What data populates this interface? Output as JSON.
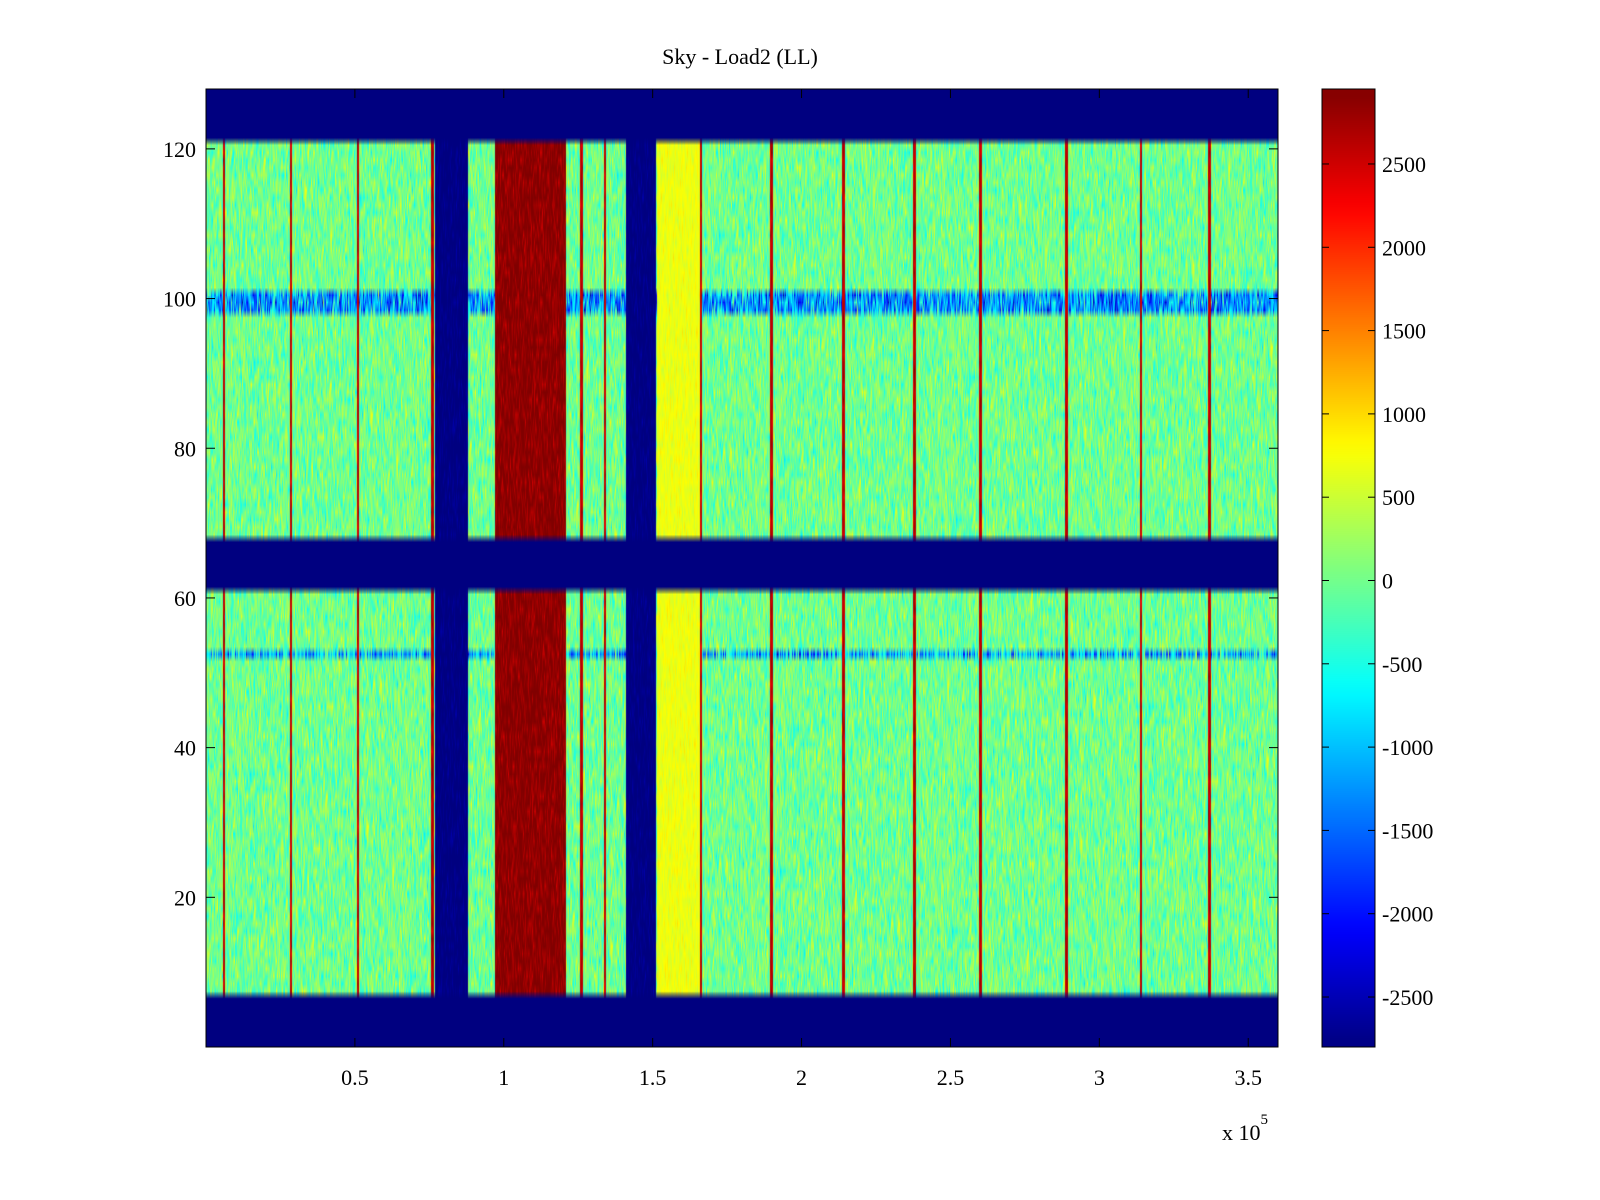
{
  "chart_data": {
    "type": "heatmap",
    "title": "Sky - Load2 (LL)",
    "xlabel": "",
    "ylabel": "",
    "x_multiplier_label": "x 10",
    "x_multiplier_exp": "5",
    "xlim": [
      0,
      360000
    ],
    "ylim": [
      0,
      128
    ],
    "xticks": [
      {
        "value": 50000,
        "label": "0.5"
      },
      {
        "value": 100000,
        "label": "1"
      },
      {
        "value": 150000,
        "label": "1.5"
      },
      {
        "value": 200000,
        "label": "2"
      },
      {
        "value": 250000,
        "label": "2.5"
      },
      {
        "value": 300000,
        "label": "3"
      },
      {
        "value": 350000,
        "label": "3.5"
      }
    ],
    "yticks": [
      {
        "value": 20,
        "label": "20"
      },
      {
        "value": 40,
        "label": "40"
      },
      {
        "value": 60,
        "label": "60"
      },
      {
        "value": 80,
        "label": "80"
      },
      {
        "value": 100,
        "label": "100"
      },
      {
        "value": 120,
        "label": "120"
      }
    ],
    "colormap": "jet",
    "clim": [
      -2800,
      2950
    ],
    "colorbar_ticks": [
      {
        "value": 2500,
        "label": "2500"
      },
      {
        "value": 2000,
        "label": "2000"
      },
      {
        "value": 1500,
        "label": "1500"
      },
      {
        "value": 1000,
        "label": "1000"
      },
      {
        "value": 500,
        "label": "500"
      },
      {
        "value": 0,
        "label": "0"
      },
      {
        "value": -500,
        "label": "-500"
      },
      {
        "value": -1000,
        "label": "-1000"
      },
      {
        "value": -1500,
        "label": "-1500"
      },
      {
        "value": -2000,
        "label": "-2000"
      },
      {
        "value": -2500,
        "label": "-2500"
      }
    ],
    "background_value": 0,
    "masked_value": -2800,
    "masked_rows": [
      [
        0,
        7.5
      ],
      [
        61.5,
        68.5
      ],
      [
        121.5,
        128
      ]
    ],
    "vertical_bands": [
      {
        "x": [
          77000,
          88000
        ],
        "value": -2800
      },
      {
        "x": [
          97000,
          121000
        ],
        "value": 2900
      },
      {
        "x": [
          141000,
          151000
        ],
        "value": -2800
      },
      {
        "x": [
          151500,
          166000
        ],
        "value": 700
      }
    ],
    "vertical_spikes_x": [
      6000,
      28500,
      51000,
      76000,
      126000,
      134000,
      166000,
      190000,
      214000,
      238000,
      260000,
      289000,
      314000,
      337000
    ],
    "spike_value": 2600,
    "horizontal_stripes": [
      {
        "y": [
          98.5,
          101.5
        ],
        "value": -1200,
        "note": ""
      },
      {
        "y": [
          52.5,
          53.5
        ],
        "value": -1000,
        "note": ""
      }
    ]
  }
}
